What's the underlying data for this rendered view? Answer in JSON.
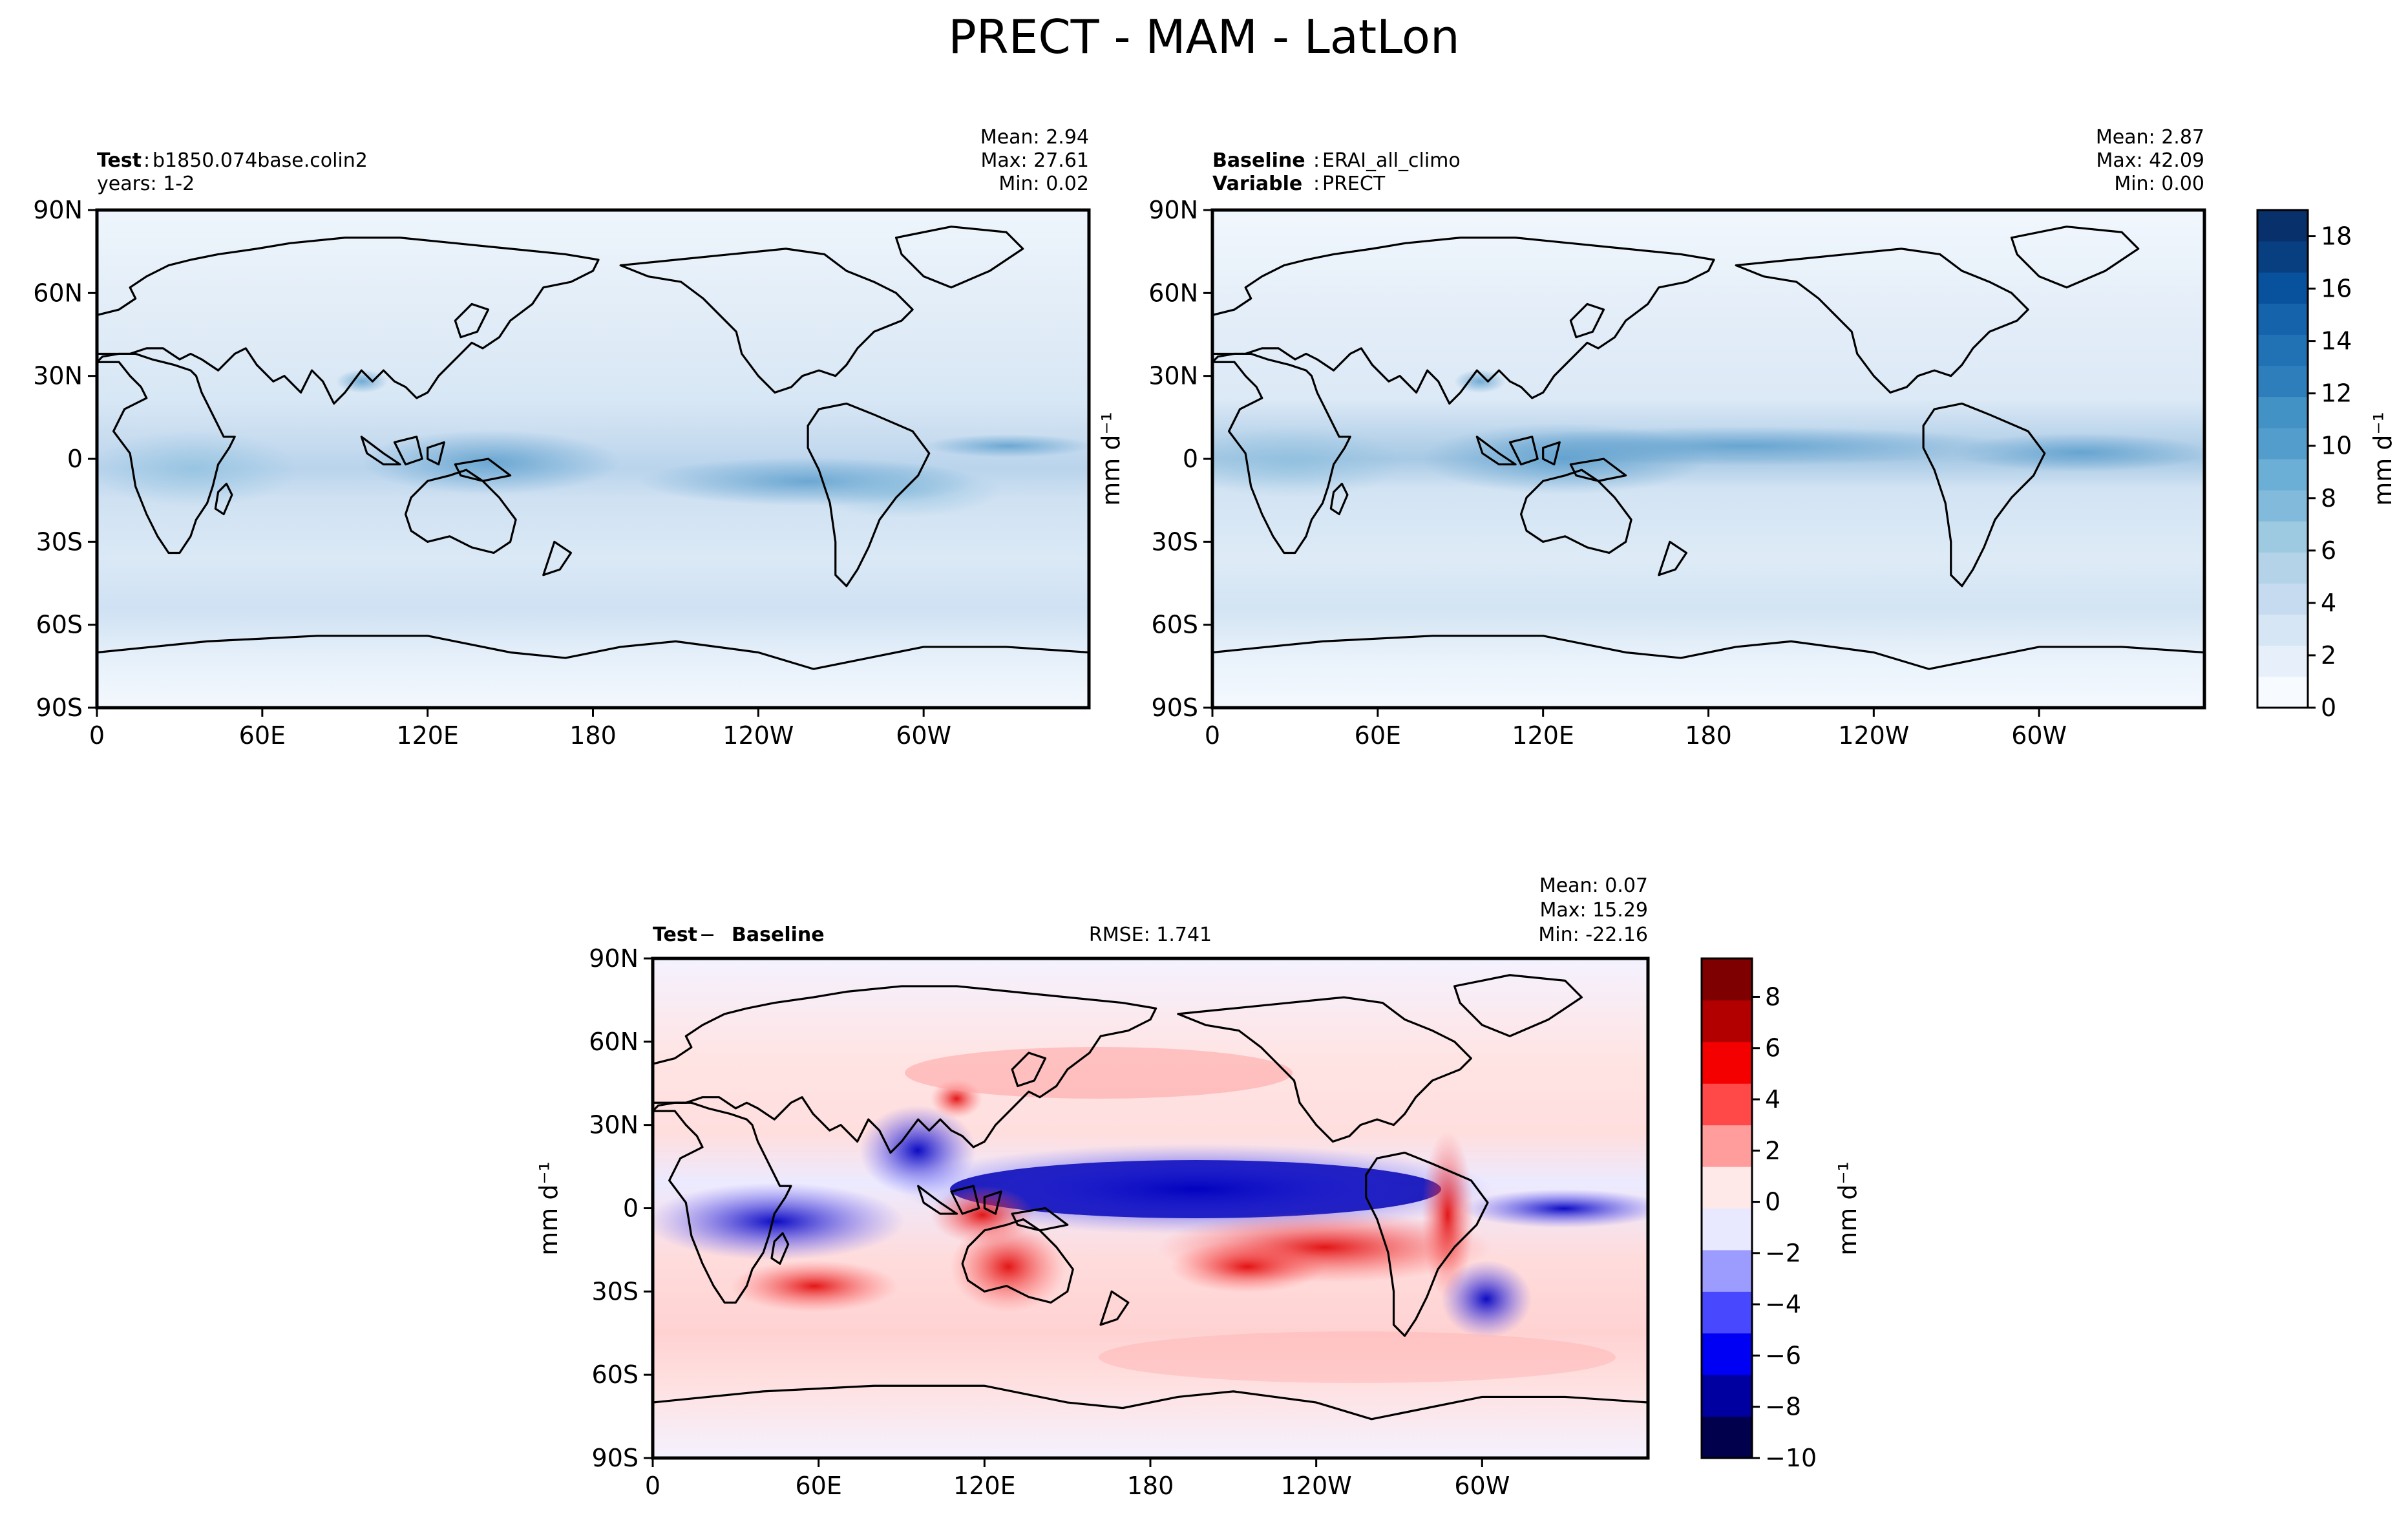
{
  "figure": {
    "suptitle": "PRECT - MAM - LatLon"
  },
  "colors": {
    "seq": [
      "#f7fbff",
      "#e7f0fa",
      "#d6e6f4",
      "#c6dbef",
      "#b4d3e8",
      "#9ecae1",
      "#82badb",
      "#6baed6",
      "#539dcc",
      "#4292c6",
      "#2f7ebc",
      "#2171b5",
      "#1563aa",
      "#08519c",
      "#083f80",
      "#08306b"
    ],
    "div": [
      "#00004c",
      "#0000a0",
      "#0000f4",
      "#4848ff",
      "#9c9cff",
      "#e8e8ff",
      "#ffe8e8",
      "#ff9c9c",
      "#ff4848",
      "#f40000",
      "#b20000",
      "#7f0000"
    ],
    "land_outline": "#000000"
  },
  "panels": {
    "test": {
      "label_bold": "Test",
      "label_sep": ":",
      "label_value": "b1850.074base.colin2",
      "line2": "years: 1-2",
      "stats": [
        "Mean:  2.94",
        "Max: 27.61",
        "Min:  0.02"
      ]
    },
    "baseline": {
      "label_bold": "Baseline",
      "label_sep": ":",
      "label_value": "ERAI_all_climo",
      "line2_bold": "Variable",
      "line2_sep": ":",
      "line2_value": "PRECT",
      "stats": [
        "Mean:  2.87",
        "Max: 42.09",
        "Min:  0.00"
      ]
    },
    "diff": {
      "label_bold": "Test",
      "label_sep": " − ",
      "label_bold2": "Baseline",
      "rmse": "RMSE: 1.741",
      "stats": [
        "Mean:  0.07",
        "Max: 15.29",
        "Min: -22.16"
      ]
    }
  },
  "axes": {
    "lat_ticks": [
      "90N",
      "60N",
      "30N",
      "0",
      "30S",
      "60S",
      "90S"
    ],
    "lon_ticks": [
      "0",
      "60E",
      "120E",
      "180",
      "120W",
      "60W"
    ]
  },
  "colorbars": {
    "seq": {
      "unit": "mm d⁻¹",
      "ticks": [
        "0",
        "2",
        "4",
        "6",
        "8",
        "10",
        "12",
        "14",
        "16",
        "18"
      ],
      "range": [
        0,
        19
      ]
    },
    "div": {
      "unit": "mm d⁻¹",
      "ticks": [
        "−10",
        "−8",
        "−6",
        "−4",
        "−2",
        "0",
        "2",
        "4",
        "6",
        "8"
      ],
      "range": [
        -10,
        9.5
      ]
    },
    "diff_ylabel": "mm d⁻¹"
  },
  "chart_data": [
    {
      "type": "heatmap",
      "title": "Test: b1850.074base.colin2",
      "variable": "PRECT",
      "units": "mm d⁻¹",
      "xlim": [
        0,
        360
      ],
      "ylim": [
        -90,
        90
      ],
      "stats": {
        "mean": 2.94,
        "max": 27.61,
        "min": 0.02
      },
      "colormap": "Blues"
    },
    {
      "type": "heatmap",
      "title": "Baseline: ERAI_all_climo",
      "variable": "PRECT",
      "units": "mm d⁻¹",
      "xlim": [
        0,
        360
      ],
      "ylim": [
        -90,
        90
      ],
      "stats": {
        "mean": 2.87,
        "max": 42.09,
        "min": 0.0
      },
      "colormap": "Blues"
    },
    {
      "type": "heatmap",
      "title": "Test − Baseline",
      "variable": "PRECT",
      "units": "mm d⁻¹",
      "xlim": [
        0,
        360
      ],
      "ylim": [
        -90,
        90
      ],
      "stats": {
        "mean": 0.07,
        "max": 15.29,
        "min": -22.16,
        "rmse": 1.741
      },
      "colormap": "seismic"
    }
  ]
}
